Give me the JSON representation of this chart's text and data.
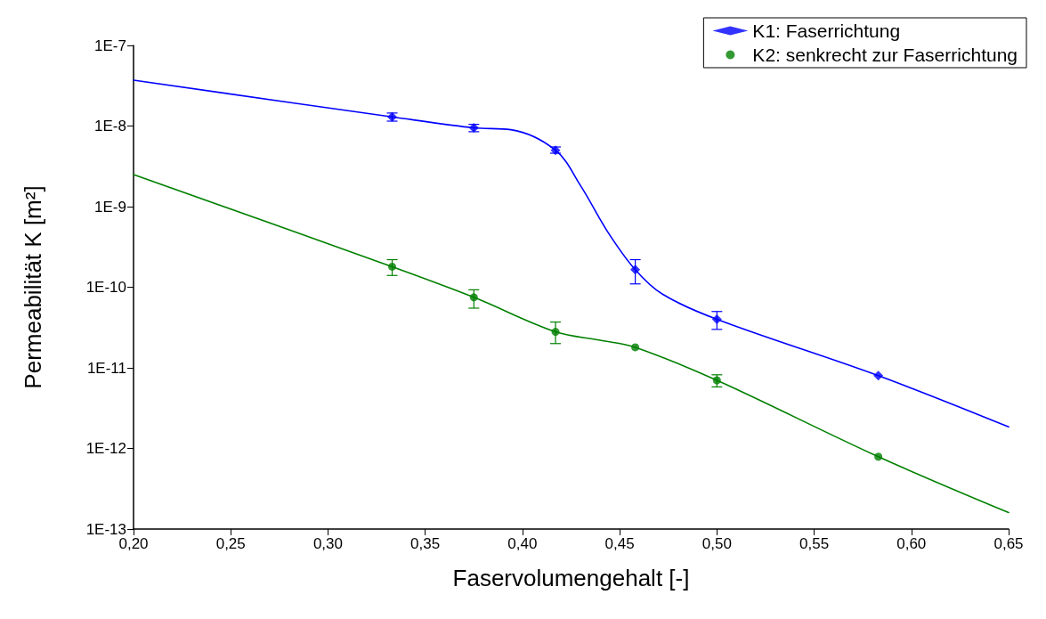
{
  "chart_data": {
    "type": "scatter",
    "xlabel": "Faservolumengehalt [-]",
    "ylabel": "Permeabilität K [m²]",
    "log": "y",
    "grid": false,
    "legend": "top right",
    "xlim": [
      0.2,
      0.65
    ],
    "xticks": [
      {
        "value": 0.2,
        "label": "0,20"
      },
      {
        "value": 0.25,
        "label": "0,25"
      },
      {
        "value": 0.3,
        "label": "0,30"
      },
      {
        "value": 0.35,
        "label": "0,35"
      },
      {
        "value": 0.4,
        "label": "0,40"
      },
      {
        "value": 0.45,
        "label": "0,45"
      },
      {
        "value": 0.5,
        "label": "0,50"
      },
      {
        "value": 0.55,
        "label": "0,55"
      },
      {
        "value": 0.6,
        "label": "0,60"
      },
      {
        "value": 0.65,
        "label": "0,65"
      }
    ],
    "ylim": [
      1e-13,
      1e-07
    ],
    "yticks": [
      {
        "value": 1e-13,
        "label": "1E-13"
      },
      {
        "value": 1e-12,
        "label": "1E-12"
      },
      {
        "value": 1e-11,
        "label": "1E-11"
      },
      {
        "value": 1e-10,
        "label": "1E-10"
      },
      {
        "value": 1e-09,
        "label": "1E-9"
      },
      {
        "value": 1e-08,
        "label": "1E-8"
      },
      {
        "value": 1e-07,
        "label": "1E-7"
      }
    ],
    "series": [
      {
        "name": "K1: Faserrichtung",
        "marker": "diamond",
        "color": "#0000ff",
        "x": [
          0.333,
          0.375,
          0.417,
          0.458,
          0.5,
          0.583
        ],
        "values": [
          1.3e-08,
          9.5e-09,
          5e-09,
          1.65e-10,
          4e-11,
          8e-12
        ],
        "errors": [
          [
            1.15e-08,
            1.45e-08
          ],
          [
            8.5e-09,
            1.05e-08
          ],
          [
            4.6e-09,
            5.5e-09
          ],
          [
            1.1e-10,
            2.2e-10
          ],
          [
            3e-11,
            5e-11
          ],
          null
        ]
      },
      {
        "name": "K2: senkrecht zur Faserrichtung",
        "marker": "circle",
        "color": "#008000",
        "x": [
          0.333,
          0.375,
          0.417,
          0.458,
          0.5,
          0.583
        ],
        "values": [
          1.8e-10,
          7.5e-11,
          2.8e-11,
          1.8e-11,
          7e-12,
          7.9e-13
        ],
        "errors": [
          [
            1.4e-10,
            2.2e-10
          ],
          [
            5.5e-11,
            9.3e-11
          ],
          [
            2e-11,
            3.7e-11
          ],
          null,
          [
            5.8e-12,
            8.2e-12
          ],
          null
        ]
      },
      {
        "type": "line",
        "marker": "none",
        "color": "#0000ff",
        "x": [
          0.2,
          0.333,
          0.375,
          0.394,
          0.417,
          0.43,
          0.444,
          0.458,
          0.472,
          0.5,
          0.583,
          0.65
        ],
        "values": [
          3.7e-08,
          1.3e-08,
          9.5e-09,
          9e-09,
          5e-09,
          1.8e-09,
          4.8e-10,
          1.65e-10,
          8.2e-11,
          4e-11,
          8e-12,
          1.85e-12
        ]
      },
      {
        "type": "line",
        "marker": "none",
        "color": "#008000",
        "x": [
          0.2,
          0.333,
          0.375,
          0.417,
          0.44,
          0.458,
          0.5,
          0.583,
          0.65
        ],
        "values": [
          2.5e-09,
          1.8e-10,
          7.5e-11,
          2.8e-11,
          2.2e-11,
          1.8e-11,
          7e-12,
          7.9e-13,
          1.6e-13
        ]
      }
    ]
  }
}
